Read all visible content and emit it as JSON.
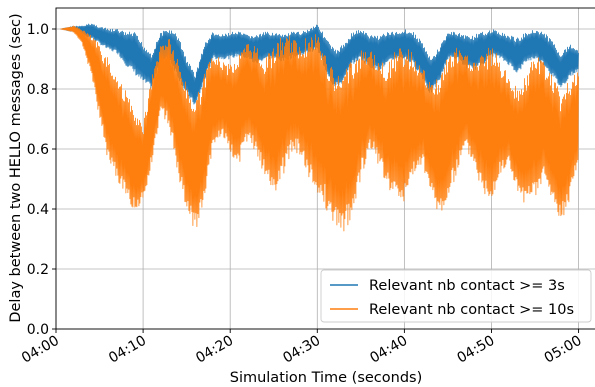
{
  "chart_data": {
    "type": "line",
    "xlabel": "Simulation Time (seconds)",
    "ylabel": "Delay between two HELLO messages (sec)",
    "xlim": [
      0,
      62
    ],
    "ylim": [
      0.0,
      1.07
    ],
    "x_ticks": [
      {
        "value": 0,
        "label": "04:00"
      },
      {
        "value": 10,
        "label": "04:10"
      },
      {
        "value": 20,
        "label": "04:20"
      },
      {
        "value": 30,
        "label": "04:30"
      },
      {
        "value": 40,
        "label": "04:40"
      },
      {
        "value": 50,
        "label": "04:50"
      },
      {
        "value": 60,
        "label": "05:00"
      }
    ],
    "y_ticks": [
      {
        "value": 0.0,
        "label": "0.0"
      },
      {
        "value": 0.2,
        "label": "0.2"
      },
      {
        "value": 0.4,
        "label": "0.4"
      },
      {
        "value": 0.6,
        "label": "0.6"
      },
      {
        "value": 0.8,
        "label": "0.8"
      },
      {
        "value": 1.0,
        "label": "1.0"
      }
    ],
    "grid": true,
    "legend_position": "bottom-right",
    "series": [
      {
        "name": "Relevant nb contact >= 3s",
        "color": "#1f77b4",
        "x": [
          0.5,
          2,
          3,
          4,
          5,
          6,
          7,
          8,
          9,
          10,
          11,
          12,
          13,
          14,
          15,
          16,
          17,
          18,
          19,
          20,
          21,
          22,
          23,
          24,
          25,
          26,
          27,
          28,
          29,
          30,
          31,
          32,
          33,
          34,
          35,
          36,
          37,
          38,
          39,
          40,
          41,
          42,
          43,
          44,
          45,
          46,
          47,
          48,
          49,
          50,
          51,
          52,
          53,
          54,
          55,
          56,
          57,
          58,
          59,
          60
        ],
        "y_upper": [
          1.0,
          1.01,
          1.01,
          1.02,
          1.01,
          1.0,
          1.0,
          0.99,
          0.99,
          0.95,
          0.92,
          0.99,
          1.0,
          0.98,
          0.9,
          0.85,
          0.95,
          0.99,
          0.98,
          0.99,
          0.99,
          0.98,
          0.98,
          0.99,
          0.99,
          0.98,
          0.99,
          0.99,
          1.0,
          1.02,
          0.97,
          0.93,
          0.95,
          0.99,
          1.0,
          0.98,
          0.98,
          0.99,
          0.99,
          1.0,
          0.99,
          0.96,
          0.9,
          0.94,
          0.99,
          0.99,
          0.98,
          0.98,
          0.99,
          1.0,
          0.99,
          0.98,
          0.97,
          0.99,
          1.0,
          0.99,
          0.96,
          0.92,
          0.95,
          0.93
        ],
        "y_lower": [
          1.0,
          0.99,
          0.98,
          0.97,
          0.95,
          0.93,
          0.92,
          0.88,
          0.85,
          0.82,
          0.8,
          0.88,
          0.9,
          0.84,
          0.78,
          0.74,
          0.82,
          0.9,
          0.9,
          0.9,
          0.91,
          0.9,
          0.88,
          0.9,
          0.9,
          0.89,
          0.9,
          0.91,
          0.92,
          0.93,
          0.86,
          0.8,
          0.82,
          0.88,
          0.9,
          0.87,
          0.86,
          0.88,
          0.9,
          0.9,
          0.88,
          0.84,
          0.78,
          0.82,
          0.9,
          0.9,
          0.87,
          0.86,
          0.88,
          0.91,
          0.9,
          0.88,
          0.85,
          0.89,
          0.9,
          0.88,
          0.84,
          0.8,
          0.84,
          0.86
        ]
      },
      {
        "name": "Relevant nb contact >= 10s",
        "color": "#ff7f0e",
        "x": [
          0.5,
          2,
          3,
          4,
          5,
          6,
          7,
          8,
          9,
          10,
          11,
          12,
          13,
          14,
          15,
          16,
          17,
          18,
          19,
          20,
          21,
          22,
          23,
          24,
          25,
          26,
          27,
          28,
          29,
          30,
          31,
          32,
          33,
          34,
          35,
          36,
          37,
          38,
          39,
          40,
          41,
          42,
          43,
          44,
          45,
          46,
          47,
          48,
          49,
          50,
          51,
          52,
          53,
          54,
          55,
          56,
          57,
          58,
          59,
          60
        ],
        "y_upper": [
          1.0,
          1.01,
          1.0,
          0.98,
          0.95,
          0.9,
          0.85,
          0.8,
          0.72,
          0.68,
          0.85,
          0.95,
          0.98,
          0.9,
          0.82,
          0.76,
          0.85,
          0.92,
          0.9,
          0.88,
          0.92,
          0.96,
          0.95,
          0.9,
          0.95,
          0.98,
          0.98,
          0.95,
          0.98,
          1.0,
          0.92,
          0.85,
          0.85,
          0.9,
          0.93,
          0.94,
          0.9,
          0.88,
          0.93,
          0.95,
          0.92,
          0.88,
          0.82,
          0.85,
          0.92,
          0.94,
          0.92,
          0.9,
          0.92,
          0.95,
          0.9,
          0.84,
          0.8,
          0.86,
          0.92,
          0.9,
          0.85,
          0.78,
          0.84,
          0.86
        ],
        "y_lower": [
          1.0,
          0.99,
          0.95,
          0.85,
          0.7,
          0.55,
          0.5,
          0.43,
          0.4,
          0.42,
          0.55,
          0.72,
          0.68,
          0.5,
          0.38,
          0.32,
          0.42,
          0.6,
          0.65,
          0.58,
          0.55,
          0.62,
          0.58,
          0.5,
          0.45,
          0.5,
          0.58,
          0.58,
          0.5,
          0.45,
          0.4,
          0.35,
          0.31,
          0.38,
          0.5,
          0.6,
          0.55,
          0.48,
          0.43,
          0.42,
          0.5,
          0.55,
          0.45,
          0.38,
          0.42,
          0.52,
          0.6,
          0.55,
          0.45,
          0.44,
          0.5,
          0.55,
          0.45,
          0.4,
          0.43,
          0.5,
          0.42,
          0.36,
          0.42,
          0.55
        ]
      }
    ]
  }
}
